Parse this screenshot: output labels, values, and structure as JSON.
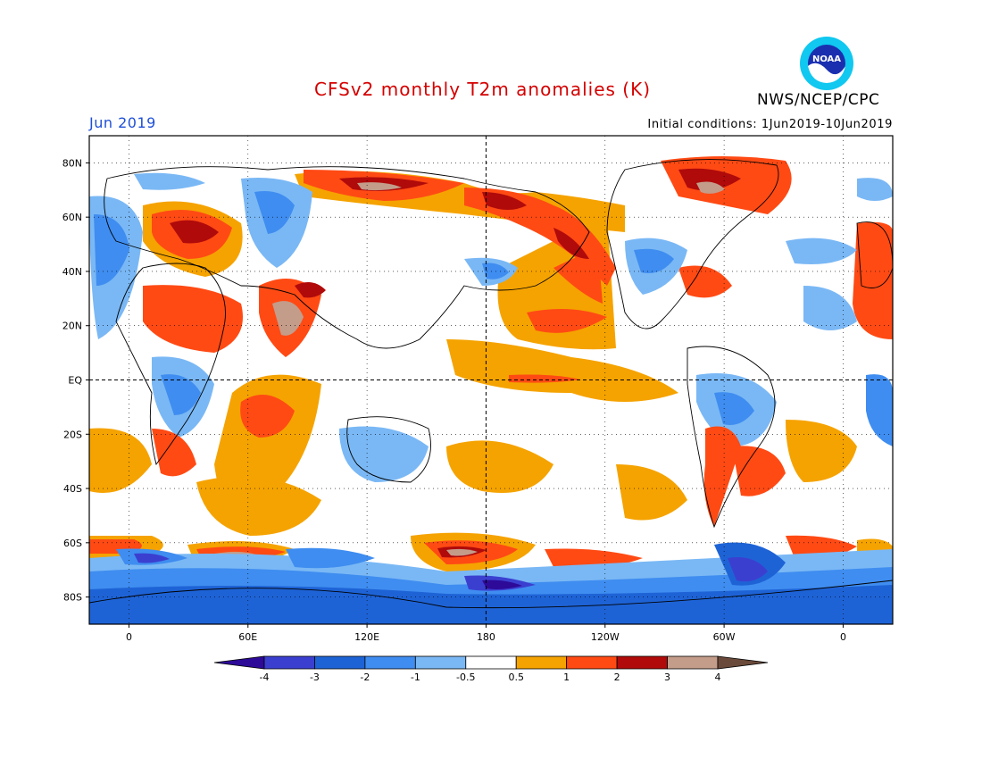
{
  "header": {
    "title": "CFSv2 monthly T2m anomalies (K)",
    "org": "NWS/NCEP/CPC",
    "month": "Jun 2019",
    "initial_conditions": "Initial conditions: 1Jun2019-10Jun2019",
    "logo_text": "NOAA"
  },
  "map": {
    "lat_labels": [
      "80N",
      "60N",
      "40N",
      "20N",
      "EQ",
      "20S",
      "40S",
      "60S",
      "80S"
    ],
    "lat_values": [
      80,
      60,
      40,
      20,
      0,
      -20,
      -40,
      -60,
      -80
    ],
    "lon_labels": [
      "0",
      "60E",
      "120E",
      "180",
      "120W",
      "60W",
      "0"
    ],
    "lon_values": [
      0,
      60,
      120,
      180,
      240,
      300,
      360
    ],
    "lon_range": [
      -20,
      385
    ],
    "lat_range": [
      -90,
      90
    ],
    "colors": {
      "neg4": "#2d0a98",
      "neg3": "#3b3fd0",
      "neg2": "#1e63d6",
      "neg1": "#3f8df0",
      "neg05": "#7ab8f5",
      "zero": "#ffffff",
      "pos05": "#f5a300",
      "pos1": "#ff4a14",
      "pos2": "#b00a0a",
      "pos3": "#c39c8a",
      "pos4": "#6a4a3a"
    }
  },
  "colorbar": {
    "labels": [
      "-4",
      "-3",
      "-2",
      "-1",
      "-0.5",
      "0.5",
      "1",
      "2",
      "3",
      "4"
    ],
    "fills": [
      "#2d0a98",
      "#3b3fd0",
      "#1e63d6",
      "#3f8df0",
      "#7ab8f5",
      "#ffffff",
      "#f5a300",
      "#ff4a14",
      "#b00a0a",
      "#c39c8a",
      "#6a4a3a"
    ]
  }
}
